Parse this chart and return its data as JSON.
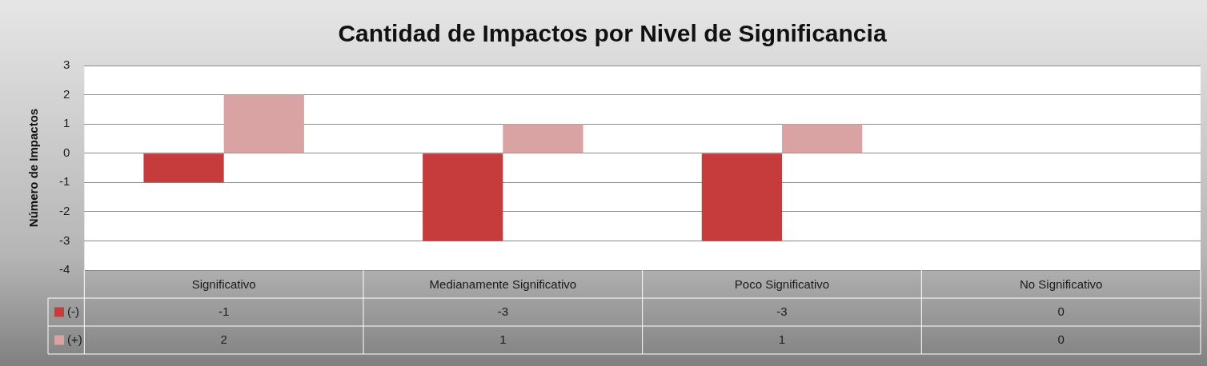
{
  "chart_data": {
    "type": "bar",
    "title": "Cantidad de Impactos por Nivel de Significancia",
    "ylabel": "Número de Impactos",
    "categories": [
      "Significativo",
      "Medianamente Significativo",
      "Poco Significativo",
      "No Significativo"
    ],
    "series": [
      {
        "name": "(-)",
        "color": "#c63b3b",
        "values": [
          -1,
          -3,
          -3,
          0
        ]
      },
      {
        "name": "(+)",
        "color": "#d9a3a3",
        "values": [
          2,
          1,
          1,
          0
        ]
      }
    ],
    "ylim": [
      -4,
      3
    ],
    "yticks": [
      -4,
      -3,
      -2,
      -1,
      0,
      1,
      2,
      3
    ],
    "grid": "y",
    "legend": "bottom",
    "data_labels": true
  }
}
